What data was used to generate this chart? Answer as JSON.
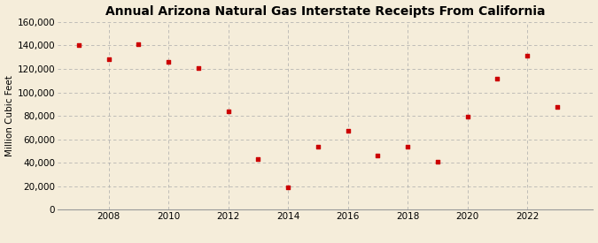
{
  "years": [
    2007,
    2008,
    2009,
    2010,
    2011,
    2012,
    2013,
    2014,
    2015,
    2016,
    2017,
    2018,
    2019,
    2020,
    2021,
    2022,
    2023
  ],
  "values": [
    140000,
    128000,
    141000,
    126000,
    121000,
    84000,
    43000,
    19000,
    54000,
    67000,
    46000,
    54000,
    41000,
    79000,
    112000,
    131000,
    88000
  ],
  "title": "Annual Arizona Natural Gas Interstate Receipts From California",
  "ylabel": "Million Cubic Feet",
  "marker_color": "#cc0000",
  "background_color": "#f5edda",
  "grid_color": "#aaaaaa",
  "ylim": [
    0,
    160000
  ],
  "yticks": [
    0,
    20000,
    40000,
    60000,
    80000,
    100000,
    120000,
    140000,
    160000
  ],
  "ytick_labels": [
    "0",
    "20,000",
    "40,000",
    "60,000",
    "80,000",
    "100,000",
    "120,000",
    "140,000",
    "160,000"
  ],
  "xticks": [
    2008,
    2010,
    2012,
    2014,
    2016,
    2018,
    2020,
    2022
  ],
  "xlim": [
    2006.3,
    2024.2
  ],
  "title_fontsize": 10,
  "axis_fontsize": 7.5,
  "source_fontsize": 7
}
